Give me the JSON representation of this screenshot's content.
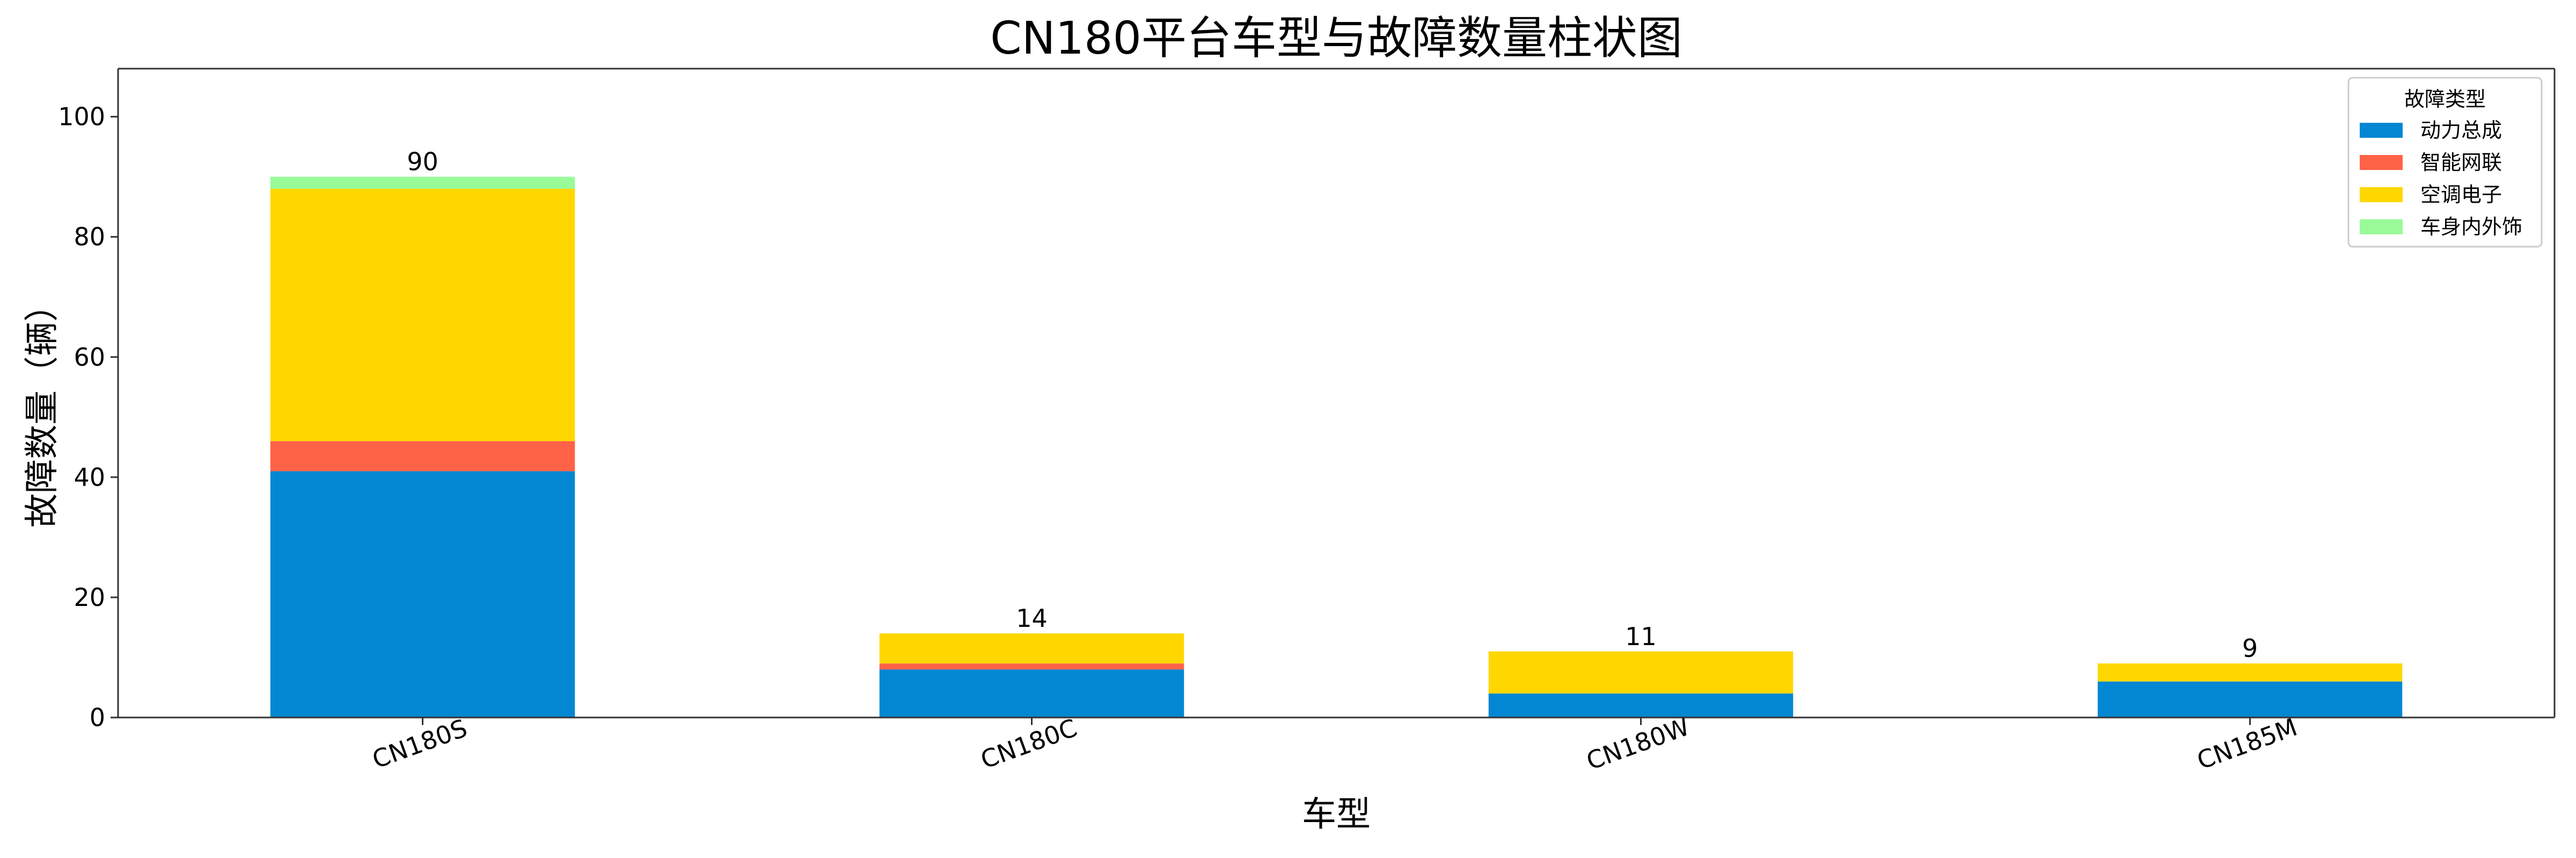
{
  "chart_data": {
    "type": "bar",
    "stacked": true,
    "title": "CN180平台车型与故障数量柱状图",
    "xlabel": "车型",
    "ylabel": "故障数量（辆）",
    "categories": [
      "CN180S",
      "CN180C",
      "CN180W",
      "CN185M"
    ],
    "series": [
      {
        "name": "动力总成",
        "values": [
          41,
          8,
          4,
          6
        ],
        "color": "#0487d3"
      },
      {
        "name": "智能网联",
        "values": [
          5,
          1,
          0,
          0
        ],
        "color": "#ff6347"
      },
      {
        "name": "空调电子",
        "values": [
          42,
          5,
          7,
          3
        ],
        "color": "#ffd700"
      },
      {
        "name": "车身内外饰",
        "values": [
          2,
          0,
          0,
          0
        ],
        "color": "#98fb98"
      }
    ],
    "totals": [
      90,
      14,
      11,
      9
    ],
    "ylim": [
      0,
      108
    ],
    "yticks": [
      0,
      20,
      40,
      60,
      80,
      100
    ],
    "grid": false,
    "legend": {
      "title": "故障类型",
      "placement": "top-right"
    }
  }
}
